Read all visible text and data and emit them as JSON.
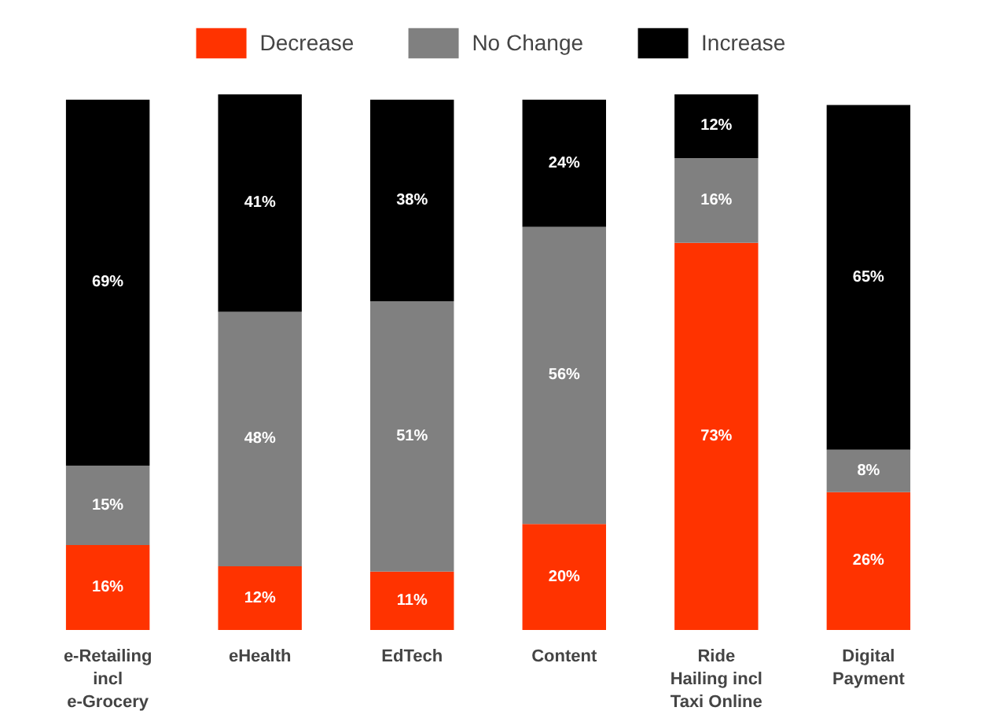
{
  "chart_data": {
    "type": "bar",
    "stacked": true,
    "legend": "top",
    "grid": false,
    "categories": [
      "e-Retailing\nincl\ne-Grocery",
      "eHealth",
      "EdTech",
      "Content",
      "Ride\nHailing incl\nTaxi Online",
      "Digital\nPayment"
    ],
    "series": [
      {
        "name": "Decrease",
        "color": "#ff3300",
        "values": [
          16,
          12,
          11,
          20,
          73,
          26
        ],
        "value_labels": [
          "16%",
          "12%",
          "11%",
          "20%",
          "73%",
          "26%"
        ]
      },
      {
        "name": "No Change",
        "color": "#808080",
        "values": [
          15,
          48,
          51,
          56,
          16,
          8
        ],
        "value_labels": [
          "15%",
          "48%",
          "51%",
          "56%",
          "16%",
          "8%"
        ]
      },
      {
        "name": "Increase",
        "color": "#000000",
        "values": [
          69,
          41,
          38,
          24,
          12,
          65
        ],
        "value_labels": [
          "69%",
          "41%",
          "38%",
          "24%",
          "12%",
          "65%"
        ]
      }
    ]
  }
}
